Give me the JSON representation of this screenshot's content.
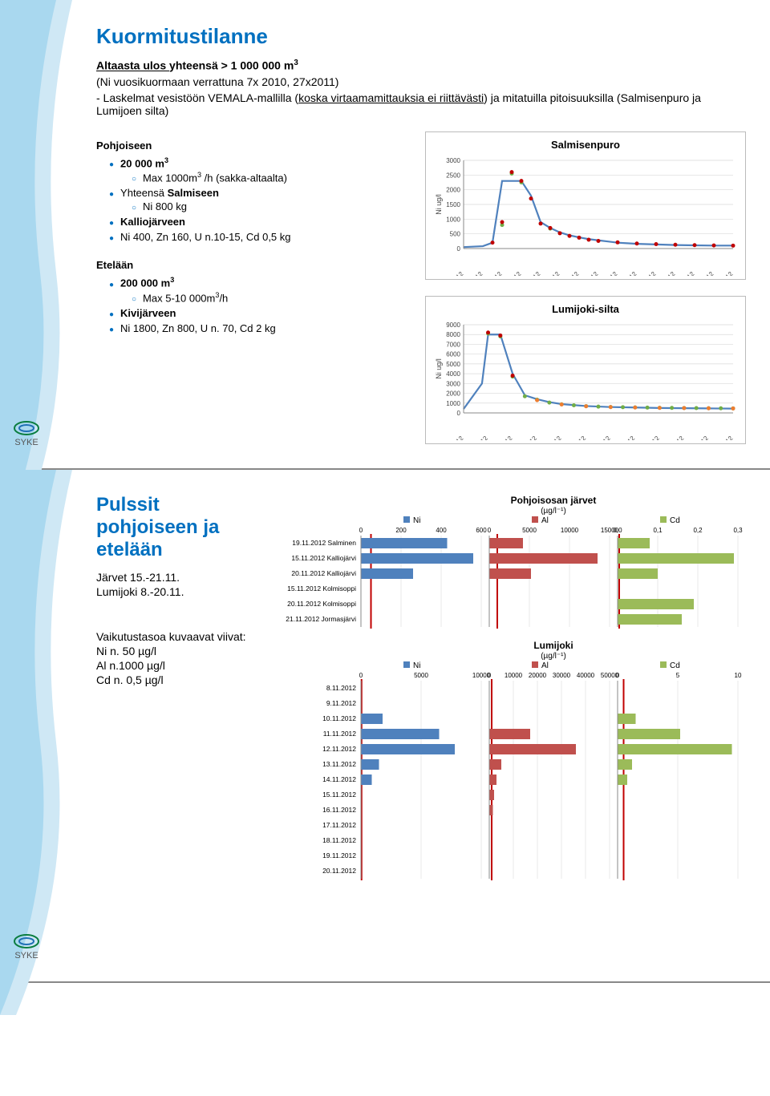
{
  "slide1": {
    "title": "Kuormitustilanne",
    "intro1_u": "Altaasta ulos ",
    "intro1_rest": "yhteensä > 1 000 000 m",
    "intro2": "(Ni vuosikuormaan verrattuna 7x 2010, 27x2011)",
    "intro3_a": "- Laskelmat vesistöön VEMALA-mallilla (",
    "intro3_b": "koska virtaamamittauksia ei riittävästi",
    "intro3_c": ") ja mitatuilla pitoisuuksilla (Salmisenpuro ja Lumijoen silta)",
    "north_head": "Pohjoiseen",
    "north_items": {
      "a": "20 000 m",
      "a_sub": "Max 1000m",
      "a_sub2": " /h (sakka-altaalta)",
      "b_pre": "Yhteensä ",
      "b_bold": "Salmiseen",
      "b_sub": "Ni 800 kg",
      "c": "Kalliojärveen",
      "d": "Ni 400, Zn 160, U n.10-15, Cd 0,5 kg"
    },
    "south_head": "Etelään",
    "south_items": {
      "a": "200 000 m",
      "a_sub_pre": "Max 5-10 000m",
      "a_sub_post": "/h",
      "b": "Kivijärveen",
      "c": "Ni 1800, Zn 800, U n. 70,  Cd 2 kg"
    },
    "chart1": {
      "title": "Salmisenpuro",
      "ylabel": "Ni ug/l",
      "yticks": [
        "0",
        "500",
        "1000",
        "1500",
        "2000",
        "2500",
        "3000"
      ],
      "ymax": 3000,
      "xticks": [
        "1.11.2012",
        "3.11.2012",
        "5.11.2012",
        "7.11.2012",
        "9.11.2012",
        "11.11.2012",
        "13.11.2012",
        "15.11.2012",
        "17.11.2012",
        "19.11.2012",
        "21.11.2012",
        "23.11.2012",
        "25.11.2012",
        "27.11.2012",
        "29.11.2012"
      ],
      "line": [
        [
          0,
          50
        ],
        [
          2,
          80
        ],
        [
          3,
          200
        ],
        [
          4,
          2300
        ],
        [
          6,
          2300
        ],
        [
          7,
          1800
        ],
        [
          8,
          900
        ],
        [
          9,
          700
        ],
        [
          10,
          550
        ],
        [
          11,
          450
        ],
        [
          12,
          380
        ],
        [
          13,
          320
        ],
        [
          14,
          280
        ],
        [
          15,
          240
        ],
        [
          16,
          200
        ],
        [
          17,
          180
        ],
        [
          18,
          160
        ],
        [
          19,
          150
        ],
        [
          20,
          140
        ],
        [
          22,
          120
        ],
        [
          24,
          110
        ],
        [
          26,
          100
        ],
        [
          28,
          100
        ]
      ],
      "red": [
        [
          3,
          200
        ],
        [
          4,
          900
        ],
        [
          5,
          2600
        ],
        [
          6,
          2300
        ],
        [
          7,
          1700
        ],
        [
          8,
          850
        ],
        [
          9,
          700
        ],
        [
          10,
          520
        ],
        [
          11,
          430
        ],
        [
          12,
          370
        ],
        [
          13,
          300
        ],
        [
          14,
          260
        ],
        [
          16,
          210
        ],
        [
          18,
          170
        ],
        [
          20,
          150
        ],
        [
          22,
          130
        ],
        [
          24,
          115
        ],
        [
          26,
          105
        ],
        [
          28,
          100
        ]
      ],
      "green": [
        [
          4,
          800
        ],
        [
          5,
          2550
        ],
        [
          6,
          2250
        ],
        [
          9,
          680
        ]
      ],
      "line_color": "#4f81bd",
      "red_color": "#c00000",
      "green_color": "#70ad47",
      "grid_color": "#d9d9d9"
    },
    "chart2": {
      "title": "Lumijoki-silta",
      "ylabel": "Ni ug/l",
      "yticks": [
        "0",
        "1000",
        "2000",
        "3000",
        "4000",
        "5000",
        "6000",
        "7000",
        "8000",
        "9000"
      ],
      "ymax": 9000,
      "xticks": [
        "8.11.2012",
        "10.11.2012",
        "12.11.2012",
        "14.11.2012",
        "16.11.2012",
        "18.11.2012",
        "20.11.2012",
        "22.11.2012",
        "24.11.2012",
        "26.11.2012",
        "28.11.2012",
        "30.11.2012"
      ],
      "line": [
        [
          0,
          400
        ],
        [
          1.5,
          3000
        ],
        [
          2,
          8000
        ],
        [
          3,
          8000
        ],
        [
          4,
          4000
        ],
        [
          5,
          1800
        ],
        [
          6,
          1400
        ],
        [
          7,
          1100
        ],
        [
          8,
          900
        ],
        [
          9,
          800
        ],
        [
          10,
          700
        ],
        [
          12,
          600
        ],
        [
          14,
          550
        ],
        [
          16,
          500
        ],
        [
          18,
          480
        ],
        [
          20,
          460
        ],
        [
          22,
          440
        ]
      ],
      "red": [
        [
          2,
          8200
        ],
        [
          3,
          7900
        ],
        [
          4,
          3800
        ]
      ],
      "green": [
        [
          2,
          8100
        ],
        [
          3,
          7800
        ],
        [
          4,
          3700
        ],
        [
          5,
          1700
        ],
        [
          6,
          1350
        ],
        [
          7,
          1050
        ],
        [
          8,
          880
        ],
        [
          9,
          780
        ],
        [
          10,
          690
        ],
        [
          11,
          640
        ],
        [
          12,
          600
        ],
        [
          13,
          580
        ],
        [
          14,
          560
        ],
        [
          15,
          540
        ],
        [
          16,
          520
        ],
        [
          17,
          510
        ],
        [
          18,
          500
        ],
        [
          19,
          490
        ],
        [
          20,
          480
        ],
        [
          21,
          470
        ],
        [
          22,
          460
        ]
      ],
      "orange": [
        [
          6,
          1300
        ],
        [
          8,
          860
        ],
        [
          10,
          680
        ],
        [
          12,
          590
        ],
        [
          14,
          550
        ],
        [
          16,
          510
        ],
        [
          18,
          495
        ],
        [
          20,
          475
        ],
        [
          22,
          455
        ]
      ],
      "line_color": "#4f81bd",
      "red_color": "#c00000",
      "green_color": "#70ad47",
      "orange_color": "#ed7d31",
      "grid_color": "#d9d9d9"
    }
  },
  "slide2": {
    "title": "Pulssit pohjoiseen ja etelään",
    "line1": "Järvet 15.-21.11.",
    "line2": "Lumijoki 8.-20.11.",
    "impact_head": "Vaikutustasoa kuvaavat viivat:",
    "impact1": "Ni n. 50 µg/l",
    "impact2": "Al n.1000 µg/l",
    "impact3": "Cd n. 0,5 µg/l",
    "top": {
      "title": "Pohjoisosan järvet",
      "unit": "(µg/l⁻¹)",
      "legend": {
        "ni": "Ni",
        "al": "Al",
        "cd": "Cd"
      },
      "panels": [
        {
          "label": "Ni",
          "ticks": [
            "0",
            "200",
            "400",
            "600"
          ],
          "max": 600,
          "ref": 50,
          "color": "#4f81bd"
        },
        {
          "label": "Al",
          "ticks": [
            "0",
            "5000",
            "10000",
            "15000"
          ],
          "max": 15000,
          "ref": 1000,
          "color": "#c0504d"
        },
        {
          "label": "Cd",
          "ticks": [
            "0,0",
            "0,1",
            "0,2",
            "0,3"
          ],
          "max": 0.3,
          "ref": 0.5,
          "color": "#9bbb59"
        }
      ],
      "rows": [
        {
          "label": "19.11.2012 Salminen",
          "vals": [
            430,
            4200,
            0.08
          ]
        },
        {
          "label": "15.11.2012 Kalliojärvi",
          "vals": [
            560,
            13500,
            0.29
          ]
        },
        {
          "label": "20.11.2012 Kalliojärvi",
          "vals": [
            260,
            5200,
            0.1
          ]
        },
        {
          "label": "15.11.2012 Kolmisoppi",
          "vals": [
            0,
            0,
            0
          ]
        },
        {
          "label": "20.11.2012 Kolmisoppi",
          "vals": [
            0,
            0,
            0.19
          ]
        },
        {
          "label": "21.11.2012 Jormasjärvi",
          "vals": [
            0,
            0,
            0.16
          ]
        }
      ]
    },
    "bottom": {
      "title": "Lumijoki",
      "unit": "(µg/l⁻¹)",
      "legend": {
        "ni": "Ni",
        "al": "Al",
        "cd": "Cd"
      },
      "panels": [
        {
          "label": "Ni",
          "ticks": [
            "0",
            "5000",
            "10000"
          ],
          "max": 10000,
          "ref": 50,
          "color": "#4f81bd"
        },
        {
          "label": "Al",
          "ticks": [
            "0",
            "10000",
            "20000",
            "30000",
            "40000",
            "50000"
          ],
          "max": 50000,
          "ref": 1000,
          "color": "#c0504d"
        },
        {
          "label": "Cd",
          "ticks": [
            "0",
            "5",
            "10"
          ],
          "max": 10,
          "ref": 0.5,
          "color": "#9bbb59"
        }
      ],
      "rows": [
        {
          "label": "8.11.2012",
          "vals": [
            0,
            0,
            0
          ]
        },
        {
          "label": "9.11.2012",
          "vals": [
            0,
            0,
            0
          ]
        },
        {
          "label": "10.11.2012",
          "vals": [
            1800,
            0,
            1.5
          ]
        },
        {
          "label": "11.11.2012",
          "vals": [
            6500,
            17000,
            5.2
          ]
        },
        {
          "label": "12.11.2012",
          "vals": [
            7800,
            36000,
            9.5
          ]
        },
        {
          "label": "13.11.2012",
          "vals": [
            1500,
            5000,
            1.2
          ]
        },
        {
          "label": "14.11.2012",
          "vals": [
            900,
            3000,
            0.8
          ]
        },
        {
          "label": "15.11.2012",
          "vals": [
            0,
            2000,
            0
          ]
        },
        {
          "label": "16.11.2012",
          "vals": [
            0,
            1500,
            0
          ]
        },
        {
          "label": "17.11.2012",
          "vals": [
            0,
            0,
            0
          ]
        },
        {
          "label": "18.11.2012",
          "vals": [
            0,
            0,
            0
          ]
        },
        {
          "label": "19.11.2012",
          "vals": [
            0,
            0,
            0
          ]
        },
        {
          "label": "20.11.2012",
          "vals": [
            0,
            0,
            0
          ]
        }
      ]
    }
  },
  "logo_text": "SYKE"
}
